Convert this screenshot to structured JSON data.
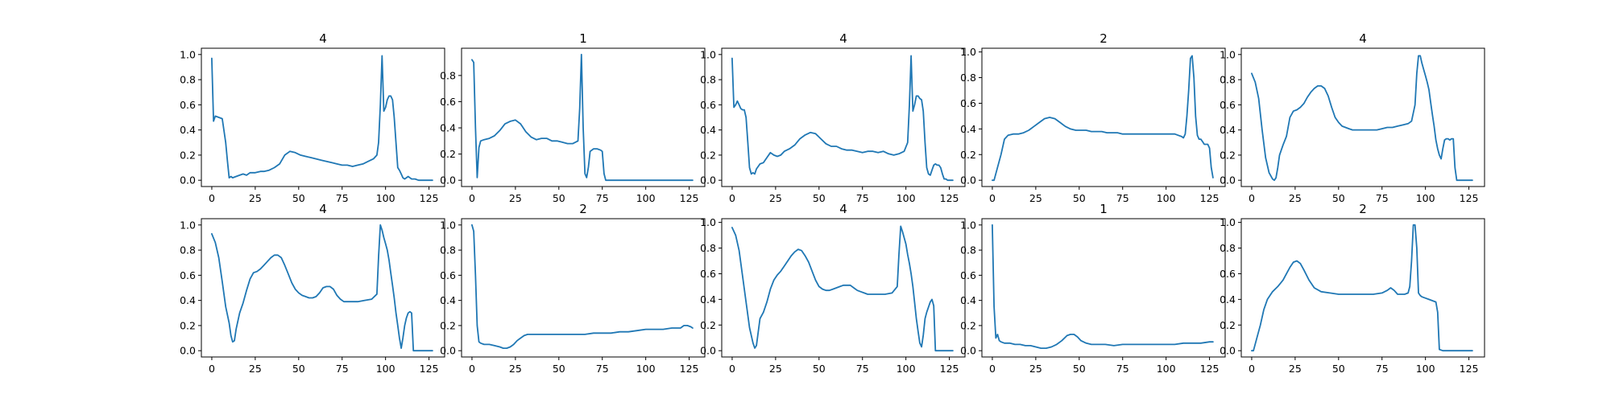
{
  "line_color": "#1f77b4",
  "chart_data": [
    {
      "type": "line",
      "title": "4",
      "xlim": [
        -6,
        134
      ],
      "ylim": [
        -0.05,
        1.05
      ],
      "xticks": [
        0,
        25,
        50,
        75,
        100,
        125
      ],
      "yticks": [
        0.0,
        0.2,
        0.4,
        0.6,
        0.8,
        1.0
      ],
      "x": [
        0,
        1,
        2,
        4,
        6,
        8,
        9,
        10,
        11,
        12,
        14,
        16,
        18,
        20,
        22,
        25,
        28,
        30,
        33,
        36,
        39,
        42,
        45,
        48,
        51,
        54,
        57,
        60,
        63,
        66,
        69,
        72,
        75,
        78,
        81,
        84,
        87,
        90,
        93,
        95,
        96,
        97,
        98,
        99,
        100,
        101,
        102,
        103,
        104,
        105,
        106,
        107,
        108,
        109,
        110,
        111,
        112,
        113,
        115,
        117,
        119,
        121,
        122,
        124,
        126,
        127
      ],
      "y": [
        0.97,
        0.47,
        0.51,
        0.5,
        0.49,
        0.3,
        0.15,
        0.02,
        0.03,
        0.02,
        0.03,
        0.04,
        0.05,
        0.04,
        0.06,
        0.06,
        0.07,
        0.07,
        0.08,
        0.1,
        0.13,
        0.2,
        0.23,
        0.22,
        0.2,
        0.19,
        0.18,
        0.17,
        0.16,
        0.15,
        0.14,
        0.13,
        0.12,
        0.12,
        0.11,
        0.12,
        0.13,
        0.15,
        0.17,
        0.2,
        0.3,
        0.6,
        0.99,
        0.55,
        0.58,
        0.64,
        0.67,
        0.67,
        0.64,
        0.5,
        0.3,
        0.1,
        0.08,
        0.05,
        0.02,
        0.01,
        0.02,
        0.03,
        0.01,
        0.01,
        0.0,
        0.0,
        0.0,
        0.0,
        0.0,
        0.0
      ]
    },
    {
      "type": "line",
      "title": "1",
      "xlim": [
        -6,
        134
      ],
      "ylim": [
        -0.048,
        1.008
      ],
      "xticks": [
        0,
        25,
        50,
        75,
        100,
        125
      ],
      "yticks": [
        0.0,
        0.2,
        0.4,
        0.6,
        0.8
      ],
      "x": [
        0,
        1,
        2,
        3,
        4,
        5,
        7,
        10,
        13,
        16,
        19,
        22,
        25,
        28,
        31,
        34,
        37,
        40,
        43,
        46,
        49,
        52,
        55,
        58,
        61,
        62,
        63,
        64,
        65,
        66,
        67,
        68,
        70,
        72,
        74,
        75,
        76,
        77,
        78,
        80,
        85,
        90,
        100,
        110,
        120,
        127
      ],
      "y": [
        0.92,
        0.9,
        0.4,
        0.02,
        0.25,
        0.3,
        0.31,
        0.32,
        0.34,
        0.38,
        0.43,
        0.45,
        0.46,
        0.43,
        0.37,
        0.33,
        0.31,
        0.32,
        0.32,
        0.3,
        0.3,
        0.29,
        0.28,
        0.28,
        0.3,
        0.55,
        0.96,
        0.4,
        0.05,
        0.02,
        0.1,
        0.22,
        0.24,
        0.24,
        0.23,
        0.22,
        0.05,
        0.0,
        0.0,
        0.0,
        0.0,
        0.0,
        0.0,
        0.0,
        0.0,
        0.0
      ]
    },
    {
      "type": "line",
      "title": "4",
      "xlim": [
        -6,
        134
      ],
      "ylim": [
        -0.05,
        1.05
      ],
      "xticks": [
        0,
        25,
        50,
        75,
        100,
        125
      ],
      "yticks": [
        0.0,
        0.2,
        0.4,
        0.6,
        0.8,
        1.0
      ],
      "x": [
        0,
        1,
        2,
        3,
        4,
        5,
        6,
        7,
        8,
        9,
        10,
        11,
        12,
        13,
        14,
        16,
        18,
        20,
        22,
        24,
        26,
        28,
        30,
        33,
        36,
        39,
        42,
        45,
        48,
        51,
        54,
        57,
        60,
        63,
        66,
        69,
        72,
        75,
        78,
        81,
        84,
        87,
        90,
        93,
        96,
        99,
        101,
        102,
        103,
        104,
        105,
        106,
        107,
        108,
        109,
        110,
        111,
        112,
        113,
        114,
        115,
        116,
        117,
        118,
        119,
        120,
        121,
        122,
        123,
        124,
        125,
        127
      ],
      "y": [
        0.97,
        0.58,
        0.6,
        0.63,
        0.6,
        0.57,
        0.56,
        0.56,
        0.5,
        0.3,
        0.1,
        0.05,
        0.06,
        0.05,
        0.09,
        0.13,
        0.14,
        0.18,
        0.22,
        0.2,
        0.19,
        0.2,
        0.23,
        0.25,
        0.28,
        0.33,
        0.36,
        0.38,
        0.37,
        0.33,
        0.29,
        0.27,
        0.27,
        0.25,
        0.24,
        0.24,
        0.23,
        0.22,
        0.23,
        0.23,
        0.22,
        0.23,
        0.21,
        0.2,
        0.21,
        0.23,
        0.3,
        0.6,
        0.99,
        0.55,
        0.6,
        0.67,
        0.67,
        0.65,
        0.64,
        0.55,
        0.3,
        0.1,
        0.05,
        0.04,
        0.08,
        0.12,
        0.13,
        0.12,
        0.12,
        0.1,
        0.05,
        0.01,
        0.01,
        0.0,
        0.0,
        0.0
      ]
    },
    {
      "type": "line",
      "title": "2",
      "xlim": [
        -6,
        134
      ],
      "ylim": [
        -0.049,
        1.029
      ],
      "xticks": [
        0,
        25,
        50,
        75,
        100,
        125
      ],
      "yticks": [
        0.0,
        0.2,
        0.4,
        0.6,
        0.8,
        1.0
      ],
      "x": [
        0,
        1,
        3,
        5,
        7,
        9,
        12,
        15,
        18,
        21,
        24,
        27,
        30,
        33,
        36,
        39,
        42,
        45,
        48,
        51,
        54,
        57,
        60,
        63,
        66,
        69,
        72,
        75,
        78,
        81,
        84,
        87,
        90,
        93,
        96,
        99,
        102,
        105,
        107,
        109,
        110,
        111,
        112,
        113,
        114,
        115,
        116,
        117,
        118,
        119,
        120,
        121,
        122,
        123,
        124,
        125,
        126,
        127
      ],
      "y": [
        0.0,
        0.0,
        0.1,
        0.2,
        0.32,
        0.35,
        0.36,
        0.36,
        0.37,
        0.39,
        0.42,
        0.45,
        0.48,
        0.49,
        0.48,
        0.45,
        0.42,
        0.4,
        0.39,
        0.39,
        0.39,
        0.38,
        0.38,
        0.38,
        0.37,
        0.37,
        0.37,
        0.36,
        0.36,
        0.36,
        0.36,
        0.36,
        0.36,
        0.36,
        0.36,
        0.36,
        0.36,
        0.36,
        0.35,
        0.34,
        0.33,
        0.36,
        0.5,
        0.7,
        0.95,
        0.97,
        0.8,
        0.5,
        0.35,
        0.32,
        0.32,
        0.3,
        0.28,
        0.28,
        0.28,
        0.25,
        0.1,
        0.02
      ]
    },
    {
      "type": "line",
      "title": "4",
      "xlim": [
        -6,
        134
      ],
      "ylim": [
        -0.05,
        1.05
      ],
      "xticks": [
        0,
        25,
        50,
        75,
        100,
        125
      ],
      "yticks": [
        0.0,
        0.2,
        0.4,
        0.6,
        0.8,
        1.0
      ],
      "x": [
        0,
        2,
        4,
        6,
        8,
        10,
        12,
        13,
        14,
        15,
        16,
        18,
        20,
        22,
        24,
        26,
        28,
        30,
        32,
        34,
        36,
        38,
        40,
        42,
        44,
        46,
        48,
        50,
        52,
        54,
        56,
        58,
        60,
        63,
        66,
        69,
        72,
        75,
        78,
        81,
        84,
        87,
        90,
        92,
        94,
        95,
        96,
        97,
        98,
        99,
        100,
        101,
        102,
        103,
        104,
        105,
        106,
        107,
        108,
        109,
        110,
        111,
        112,
        113,
        114,
        115,
        116,
        117,
        118,
        119,
        120,
        122,
        124,
        126,
        127
      ],
      "y": [
        0.85,
        0.78,
        0.65,
        0.4,
        0.18,
        0.06,
        0.01,
        0.0,
        0.02,
        0.1,
        0.2,
        0.28,
        0.35,
        0.5,
        0.55,
        0.56,
        0.58,
        0.61,
        0.66,
        0.7,
        0.73,
        0.75,
        0.75,
        0.73,
        0.67,
        0.58,
        0.5,
        0.46,
        0.43,
        0.42,
        0.41,
        0.4,
        0.4,
        0.4,
        0.4,
        0.4,
        0.4,
        0.41,
        0.42,
        0.42,
        0.43,
        0.44,
        0.45,
        0.47,
        0.6,
        0.85,
        0.99,
        0.99,
        0.93,
        0.88,
        0.83,
        0.78,
        0.72,
        0.62,
        0.52,
        0.43,
        0.32,
        0.25,
        0.2,
        0.17,
        0.25,
        0.32,
        0.33,
        0.33,
        0.32,
        0.33,
        0.33,
        0.1,
        0.0,
        0.0,
        0.0,
        0.0,
        0.0,
        0.0,
        0.0
      ]
    },
    {
      "type": "line",
      "title": "4",
      "xlim": [
        -6,
        134
      ],
      "ylim": [
        -0.05,
        1.05
      ],
      "xticks": [
        0,
        25,
        50,
        75,
        100,
        125
      ],
      "yticks": [
        0.0,
        0.2,
        0.4,
        0.6,
        0.8,
        1.0
      ],
      "x": [
        0,
        2,
        4,
        6,
        8,
        10,
        11,
        12,
        13,
        14,
        16,
        18,
        20,
        22,
        24,
        26,
        28,
        30,
        32,
        34,
        36,
        38,
        40,
        42,
        44,
        46,
        48,
        50,
        52,
        54,
        56,
        58,
        60,
        62,
        64,
        66,
        68,
        70,
        72,
        74,
        76,
        78,
        80,
        84,
        88,
        92,
        95,
        96,
        97,
        98,
        99,
        100,
        101,
        102,
        103,
        104,
        105,
        106,
        107,
        108,
        109,
        110,
        111,
        112,
        113,
        114,
        115,
        116,
        117,
        118,
        119,
        120,
        122,
        124,
        126,
        127
      ],
      "y": [
        0.93,
        0.86,
        0.74,
        0.55,
        0.35,
        0.22,
        0.12,
        0.07,
        0.08,
        0.17,
        0.3,
        0.38,
        0.48,
        0.57,
        0.62,
        0.63,
        0.65,
        0.68,
        0.71,
        0.74,
        0.76,
        0.76,
        0.74,
        0.68,
        0.61,
        0.54,
        0.49,
        0.46,
        0.44,
        0.43,
        0.42,
        0.42,
        0.43,
        0.46,
        0.5,
        0.51,
        0.51,
        0.49,
        0.44,
        0.41,
        0.39,
        0.39,
        0.39,
        0.39,
        0.4,
        0.41,
        0.45,
        0.75,
        1.0,
        0.96,
        0.9,
        0.85,
        0.8,
        0.72,
        0.62,
        0.52,
        0.42,
        0.3,
        0.2,
        0.1,
        0.02,
        0.1,
        0.2,
        0.26,
        0.3,
        0.31,
        0.3,
        0.0,
        0.0,
        0.0,
        0.0,
        0.0,
        0.0,
        0.0,
        0.0,
        0.0
      ]
    },
    {
      "type": "line",
      "title": "2",
      "xlim": [
        -6,
        134
      ],
      "ylim": [
        -0.05,
        1.05
      ],
      "xticks": [
        0,
        25,
        50,
        75,
        100,
        125
      ],
      "yticks": [
        0.0,
        0.2,
        0.4,
        0.6,
        0.8,
        1.0
      ],
      "x": [
        0,
        1,
        2,
        3,
        4,
        5,
        7,
        10,
        13,
        16,
        18,
        20,
        22,
        24,
        26,
        28,
        30,
        32,
        35,
        40,
        45,
        50,
        55,
        60,
        65,
        70,
        75,
        80,
        85,
        90,
        95,
        100,
        105,
        110,
        115,
        118,
        120,
        122,
        124,
        126,
        127
      ],
      "y": [
        1.0,
        0.95,
        0.6,
        0.2,
        0.07,
        0.06,
        0.05,
        0.05,
        0.04,
        0.03,
        0.02,
        0.02,
        0.03,
        0.05,
        0.08,
        0.1,
        0.12,
        0.13,
        0.13,
        0.13,
        0.13,
        0.13,
        0.13,
        0.13,
        0.13,
        0.14,
        0.14,
        0.14,
        0.15,
        0.15,
        0.16,
        0.17,
        0.17,
        0.17,
        0.18,
        0.18,
        0.18,
        0.2,
        0.2,
        0.19,
        0.18
      ]
    },
    {
      "type": "line",
      "title": "4",
      "xlim": [
        -6,
        134
      ],
      "ylim": [
        -0.049,
        1.029
      ],
      "xticks": [
        0,
        25,
        50,
        75,
        100,
        125
      ],
      "yticks": [
        0.0,
        0.2,
        0.4,
        0.6,
        0.8,
        1.0
      ],
      "x": [
        0,
        2,
        4,
        6,
        8,
        10,
        12,
        13,
        14,
        16,
        18,
        20,
        22,
        24,
        26,
        28,
        30,
        32,
        34,
        36,
        38,
        40,
        42,
        44,
        46,
        48,
        50,
        52,
        54,
        56,
        58,
        60,
        62,
        64,
        66,
        68,
        70,
        72,
        74,
        76,
        78,
        80,
        84,
        88,
        92,
        95,
        96,
        97,
        98,
        99,
        100,
        101,
        102,
        103,
        104,
        105,
        106,
        107,
        108,
        109,
        110,
        111,
        112,
        113,
        114,
        115,
        116,
        117,
        118,
        119,
        120,
        122,
        124,
        126,
        127
      ],
      "y": [
        0.96,
        0.9,
        0.78,
        0.58,
        0.38,
        0.18,
        0.06,
        0.02,
        0.04,
        0.25,
        0.3,
        0.38,
        0.48,
        0.55,
        0.59,
        0.62,
        0.66,
        0.7,
        0.74,
        0.77,
        0.79,
        0.78,
        0.74,
        0.69,
        0.62,
        0.55,
        0.5,
        0.48,
        0.47,
        0.47,
        0.48,
        0.49,
        0.5,
        0.51,
        0.51,
        0.51,
        0.49,
        0.47,
        0.46,
        0.45,
        0.44,
        0.44,
        0.44,
        0.44,
        0.45,
        0.5,
        0.75,
        0.97,
        0.93,
        0.88,
        0.83,
        0.75,
        0.68,
        0.6,
        0.5,
        0.38,
        0.25,
        0.15,
        0.06,
        0.03,
        0.12,
        0.25,
        0.3,
        0.34,
        0.38,
        0.4,
        0.35,
        0.0,
        0.0,
        0.0,
        0.0,
        0.0,
        0.0,
        0.0,
        0.0
      ]
    },
    {
      "type": "line",
      "title": "1",
      "xlim": [
        -6,
        134
      ],
      "ylim": [
        -0.05,
        1.05
      ],
      "xticks": [
        0,
        25,
        50,
        75,
        100,
        125
      ],
      "yticks": [
        0.0,
        0.2,
        0.4,
        0.6,
        0.8,
        1.0
      ],
      "x": [
        0,
        1,
        2,
        3,
        4,
        5,
        7,
        10,
        13,
        16,
        19,
        22,
        25,
        28,
        31,
        34,
        37,
        40,
        43,
        45,
        47,
        49,
        51,
        54,
        57,
        60,
        65,
        70,
        75,
        80,
        85,
        90,
        95,
        100,
        105,
        110,
        115,
        120,
        125,
        127
      ],
      "y": [
        1.0,
        0.35,
        0.1,
        0.13,
        0.08,
        0.07,
        0.06,
        0.06,
        0.05,
        0.05,
        0.04,
        0.04,
        0.03,
        0.02,
        0.02,
        0.03,
        0.05,
        0.08,
        0.12,
        0.13,
        0.13,
        0.11,
        0.08,
        0.06,
        0.05,
        0.05,
        0.05,
        0.04,
        0.05,
        0.05,
        0.05,
        0.05,
        0.05,
        0.05,
        0.05,
        0.06,
        0.06,
        0.06,
        0.07,
        0.07
      ]
    },
    {
      "type": "line",
      "title": "2",
      "xlim": [
        -6,
        134
      ],
      "ylim": [
        -0.049,
        1.029
      ],
      "xticks": [
        0,
        25,
        50,
        75,
        100,
        125
      ],
      "yticks": [
        0.0,
        0.2,
        0.4,
        0.6,
        0.8,
        1.0
      ],
      "x": [
        0,
        1,
        3,
        5,
        7,
        9,
        12,
        15,
        18,
        20,
        22,
        24,
        26,
        28,
        30,
        33,
        36,
        40,
        45,
        50,
        55,
        60,
        65,
        70,
        75,
        78,
        80,
        82,
        84,
        86,
        88,
        90,
        91,
        92,
        93,
        94,
        95,
        96,
        97,
        98,
        100,
        102,
        104,
        106,
        107,
        108,
        110,
        115,
        120,
        125,
        127
      ],
      "y": [
        0.0,
        0.0,
        0.1,
        0.2,
        0.32,
        0.4,
        0.46,
        0.5,
        0.55,
        0.6,
        0.65,
        0.69,
        0.7,
        0.68,
        0.63,
        0.55,
        0.49,
        0.46,
        0.45,
        0.44,
        0.44,
        0.44,
        0.44,
        0.44,
        0.45,
        0.47,
        0.49,
        0.47,
        0.44,
        0.44,
        0.44,
        0.45,
        0.5,
        0.7,
        0.98,
        0.98,
        0.8,
        0.45,
        0.43,
        0.42,
        0.41,
        0.4,
        0.39,
        0.38,
        0.3,
        0.01,
        0.0,
        0.0,
        0.0,
        0.0,
        0.0
      ]
    }
  ]
}
